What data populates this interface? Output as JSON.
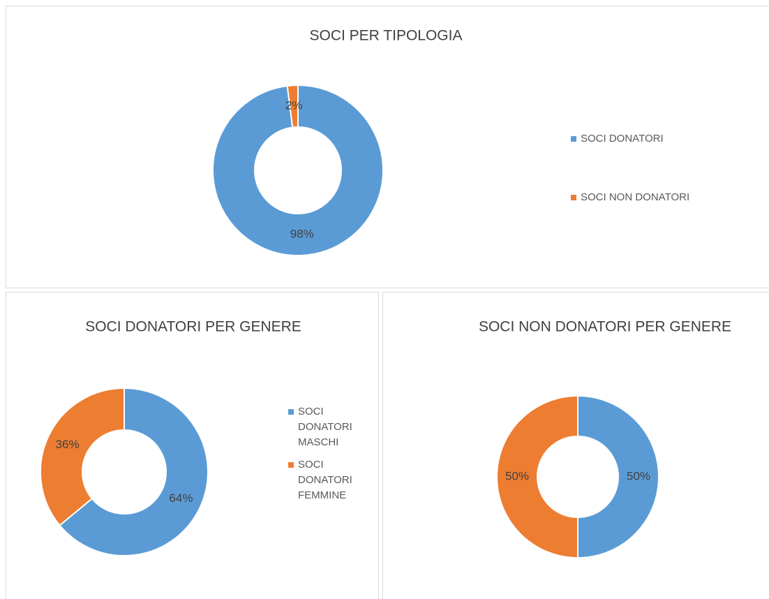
{
  "chart_data": [
    {
      "type": "donut",
      "title": "SOCI PER TIPOLOGIA",
      "categories": [
        "SOCI DONATORI",
        "SOCI NON DONATORI"
      ],
      "values": [
        98,
        2
      ],
      "value_labels": [
        "98%",
        "2%"
      ],
      "colors": [
        "#5b9bd5",
        "#ed7d31"
      ],
      "legend": "right"
    },
    {
      "type": "donut",
      "title": "SOCI DONATORI PER GENERE",
      "categories": [
        "SOCI DONATORI MASCHI",
        "SOCI DONATORI FEMMINE"
      ],
      "values": [
        64,
        36
      ],
      "value_labels": [
        "64%",
        "36%"
      ],
      "colors": [
        "#5b9bd5",
        "#ed7d31"
      ],
      "legend": "right"
    },
    {
      "type": "donut",
      "title": "SOCI NON DONATORI PER GENERE",
      "values": [
        50,
        50
      ],
      "value_labels": [
        "50%",
        "50%"
      ],
      "colors": [
        "#5b9bd5",
        "#ed7d31"
      ]
    }
  ]
}
